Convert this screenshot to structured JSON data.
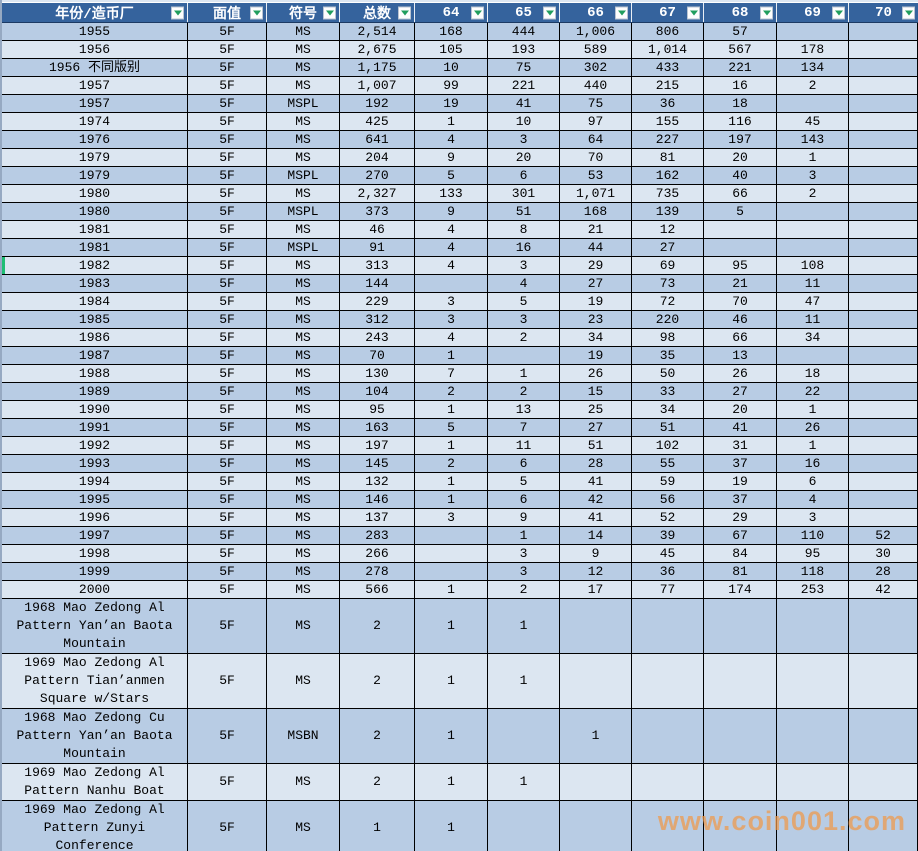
{
  "colors": {
    "header_bg": "#35639d",
    "row_dark": "#b8cce4",
    "row_light": "#dce6f1",
    "selection_green": "#1fbe74",
    "filter_arrow_green": "#219e5e",
    "watermark_orange": "#f09848"
  },
  "watermark": {
    "text": "www.coin001.com"
  },
  "table": {
    "columns": [
      "年份/造币厂",
      "面值",
      "符号",
      "总数",
      "64",
      "65",
      "66",
      "67",
      "68",
      "69",
      "70"
    ],
    "rows": [
      {
        "cells": [
          "1955",
          "5F",
          "MS",
          "2,514",
          "168",
          "444",
          "1,006",
          "806",
          "57",
          "",
          ""
        ]
      },
      {
        "cells": [
          "1956",
          "5F",
          "MS",
          "2,675",
          "105",
          "193",
          "589",
          "1,014",
          "567",
          "178",
          ""
        ]
      },
      {
        "cells": [
          "1956 不同版别",
          "5F",
          "MS",
          "1,175",
          "10",
          "75",
          "302",
          "433",
          "221",
          "134",
          ""
        ]
      },
      {
        "cells": [
          "1957",
          "5F",
          "MS",
          "1,007",
          "99",
          "221",
          "440",
          "215",
          "16",
          "2",
          ""
        ]
      },
      {
        "cells": [
          "1957",
          "5F",
          "MSPL",
          "192",
          "19",
          "41",
          "75",
          "36",
          "18",
          "",
          ""
        ]
      },
      {
        "cells": [
          "1974",
          "5F",
          "MS",
          "425",
          "1",
          "10",
          "97",
          "155",
          "116",
          "45",
          ""
        ]
      },
      {
        "cells": [
          "1976",
          "5F",
          "MS",
          "641",
          "4",
          "3",
          "64",
          "227",
          "197",
          "143",
          ""
        ]
      },
      {
        "cells": [
          "1979",
          "5F",
          "MS",
          "204",
          "9",
          "20",
          "70",
          "81",
          "20",
          "1",
          ""
        ]
      },
      {
        "cells": [
          "1979",
          "5F",
          "MSPL",
          "270",
          "5",
          "6",
          "53",
          "162",
          "40",
          "3",
          ""
        ]
      },
      {
        "cells": [
          "1980",
          "5F",
          "MS",
          "2,327",
          "133",
          "301",
          "1,071",
          "735",
          "66",
          "2",
          ""
        ]
      },
      {
        "cells": [
          "1980",
          "5F",
          "MSPL",
          "373",
          "9",
          "51",
          "168",
          "139",
          "5",
          "",
          ""
        ]
      },
      {
        "cells": [
          "1981",
          "5F",
          "MS",
          "46",
          "4",
          "8",
          "21",
          "12",
          "",
          "",
          ""
        ]
      },
      {
        "cells": [
          "1981",
          "5F",
          "MSPL",
          "91",
          "4",
          "16",
          "44",
          "27",
          "",
          "",
          ""
        ]
      },
      {
        "cells": [
          "1982",
          "5F",
          "MS",
          "313",
          "4",
          "3",
          "29",
          "69",
          "95",
          "108",
          ""
        ],
        "selected": true
      },
      {
        "cells": [
          "1983",
          "5F",
          "MS",
          "144",
          "",
          "4",
          "27",
          "73",
          "21",
          "11",
          ""
        ]
      },
      {
        "cells": [
          "1984",
          "5F",
          "MS",
          "229",
          "3",
          "5",
          "19",
          "72",
          "70",
          "47",
          ""
        ]
      },
      {
        "cells": [
          "1985",
          "5F",
          "MS",
          "312",
          "3",
          "3",
          "23",
          "220",
          "46",
          "11",
          ""
        ]
      },
      {
        "cells": [
          "1986",
          "5F",
          "MS",
          "243",
          "4",
          "2",
          "34",
          "98",
          "66",
          "34",
          ""
        ]
      },
      {
        "cells": [
          "1987",
          "5F",
          "MS",
          "70",
          "1",
          "",
          "19",
          "35",
          "13",
          "",
          ""
        ]
      },
      {
        "cells": [
          "1988",
          "5F",
          "MS",
          "130",
          "7",
          "1",
          "26",
          "50",
          "26",
          "18",
          ""
        ]
      },
      {
        "cells": [
          "1989",
          "5F",
          "MS",
          "104",
          "2",
          "2",
          "15",
          "33",
          "27",
          "22",
          ""
        ]
      },
      {
        "cells": [
          "1990",
          "5F",
          "MS",
          "95",
          "1",
          "13",
          "25",
          "34",
          "20",
          "1",
          ""
        ]
      },
      {
        "cells": [
          "1991",
          "5F",
          "MS",
          "163",
          "5",
          "7",
          "27",
          "51",
          "41",
          "26",
          ""
        ]
      },
      {
        "cells": [
          "1992",
          "5F",
          "MS",
          "197",
          "1",
          "11",
          "51",
          "102",
          "31",
          "1",
          ""
        ]
      },
      {
        "cells": [
          "1993",
          "5F",
          "MS",
          "145",
          "2",
          "6",
          "28",
          "55",
          "37",
          "16",
          ""
        ]
      },
      {
        "cells": [
          "1994",
          "5F",
          "MS",
          "132",
          "1",
          "5",
          "41",
          "59",
          "19",
          "6",
          ""
        ]
      },
      {
        "cells": [
          "1995",
          "5F",
          "MS",
          "146",
          "1",
          "6",
          "42",
          "56",
          "37",
          "4",
          ""
        ]
      },
      {
        "cells": [
          "1996",
          "5F",
          "MS",
          "137",
          "3",
          "9",
          "41",
          "52",
          "29",
          "3",
          ""
        ]
      },
      {
        "cells": [
          "1997",
          "5F",
          "MS",
          "283",
          "",
          "1",
          "14",
          "39",
          "67",
          "110",
          "52"
        ]
      },
      {
        "cells": [
          "1998",
          "5F",
          "MS",
          "266",
          "",
          "3",
          "9",
          "45",
          "84",
          "95",
          "30"
        ]
      },
      {
        "cells": [
          "1999",
          "5F",
          "MS",
          "278",
          "",
          "3",
          "12",
          "36",
          "81",
          "118",
          "28"
        ]
      },
      {
        "cells": [
          "2000",
          "5F",
          "MS",
          "566",
          "1",
          "2",
          "17",
          "77",
          "174",
          "253",
          "42"
        ]
      },
      {
        "cells": [
          "1968 Mao Zedong Al Pattern Yan’an Baota Mountain",
          "5F",
          "MS",
          "2",
          "1",
          "1",
          "",
          "",
          "",
          "",
          ""
        ]
      },
      {
        "cells": [
          "1969 Mao Zedong Al Pattern Tian’anmen Square w/Stars",
          "5F",
          "MS",
          "2",
          "1",
          "1",
          "",
          "",
          "",
          "",
          ""
        ]
      },
      {
        "cells": [
          "1968 Mao Zedong Cu Pattern Yan’an Baota Mountain",
          "5F",
          "MSBN",
          "2",
          "1",
          "",
          "1",
          "",
          "",
          "",
          ""
        ]
      },
      {
        "cells": [
          "1969 Mao Zedong Al Pattern Nanhu Boat",
          "5F",
          "MS",
          "2",
          "1",
          "1",
          "",
          "",
          "",
          "",
          ""
        ]
      },
      {
        "cells": [
          "1969 Mao Zedong Al Pattern Zunyi Conference",
          "5F",
          "MS",
          "1",
          "1",
          "",
          "",
          "",
          "",
          "",
          ""
        ]
      }
    ]
  }
}
